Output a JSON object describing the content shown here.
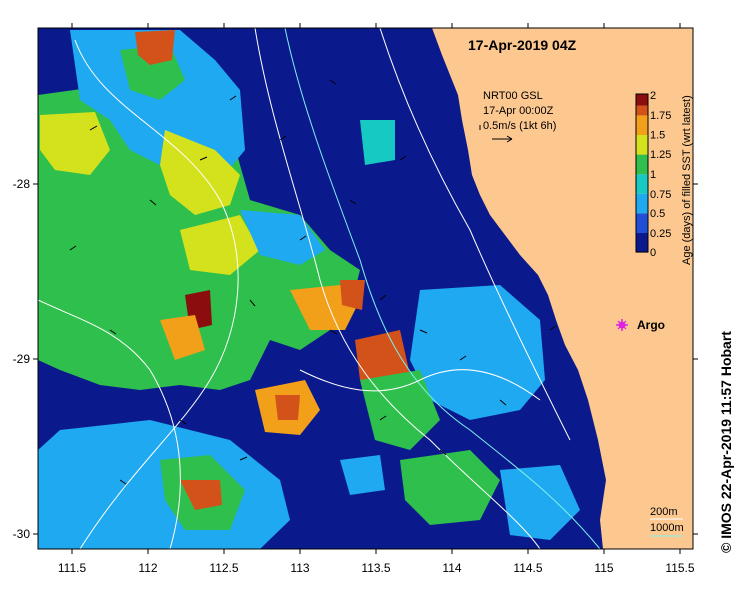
{
  "title": "17-Apr-2019 04Z",
  "current_info": {
    "line1": "NRT00 GSL",
    "line2": "17-Apr 00:00Z",
    "line3": "0.5m/s (1kt 6h)"
  },
  "argo_label": "Argo",
  "colorbar": {
    "label": "Age (days) of filled SST (wrt latest)",
    "ticks": [
      "0",
      "0.25",
      "0.5",
      "0.75",
      "1",
      "1.25",
      "1.5",
      "1.75",
      "2"
    ],
    "colors": [
      "#0a1a8c",
      "#1f4fd6",
      "#1fa9f0",
      "#17c9c3",
      "#2fbf4c",
      "#d4e21e",
      "#f2a01a",
      "#d2521a",
      "#8b0d0d"
    ]
  },
  "x_axis": {
    "ticks": [
      "111.5",
      "112",
      "112.5",
      "113",
      "113.5",
      "114",
      "114.5",
      "115",
      "115.5"
    ]
  },
  "y_axis": {
    "ticks": [
      "-28",
      "-29",
      "-30"
    ]
  },
  "depth_legend": {
    "line1": "200m",
    "line2": "1000m"
  },
  "copyright": "© IMOS 22-Apr-2019 11:57 Hobart",
  "colors": {
    "land": "#fcc890",
    "ocean_deep": "#0a1a8c",
    "argo": "#e020e0",
    "isobath_200": "#ffffff",
    "isobath_1000": "#7ef0f0"
  }
}
